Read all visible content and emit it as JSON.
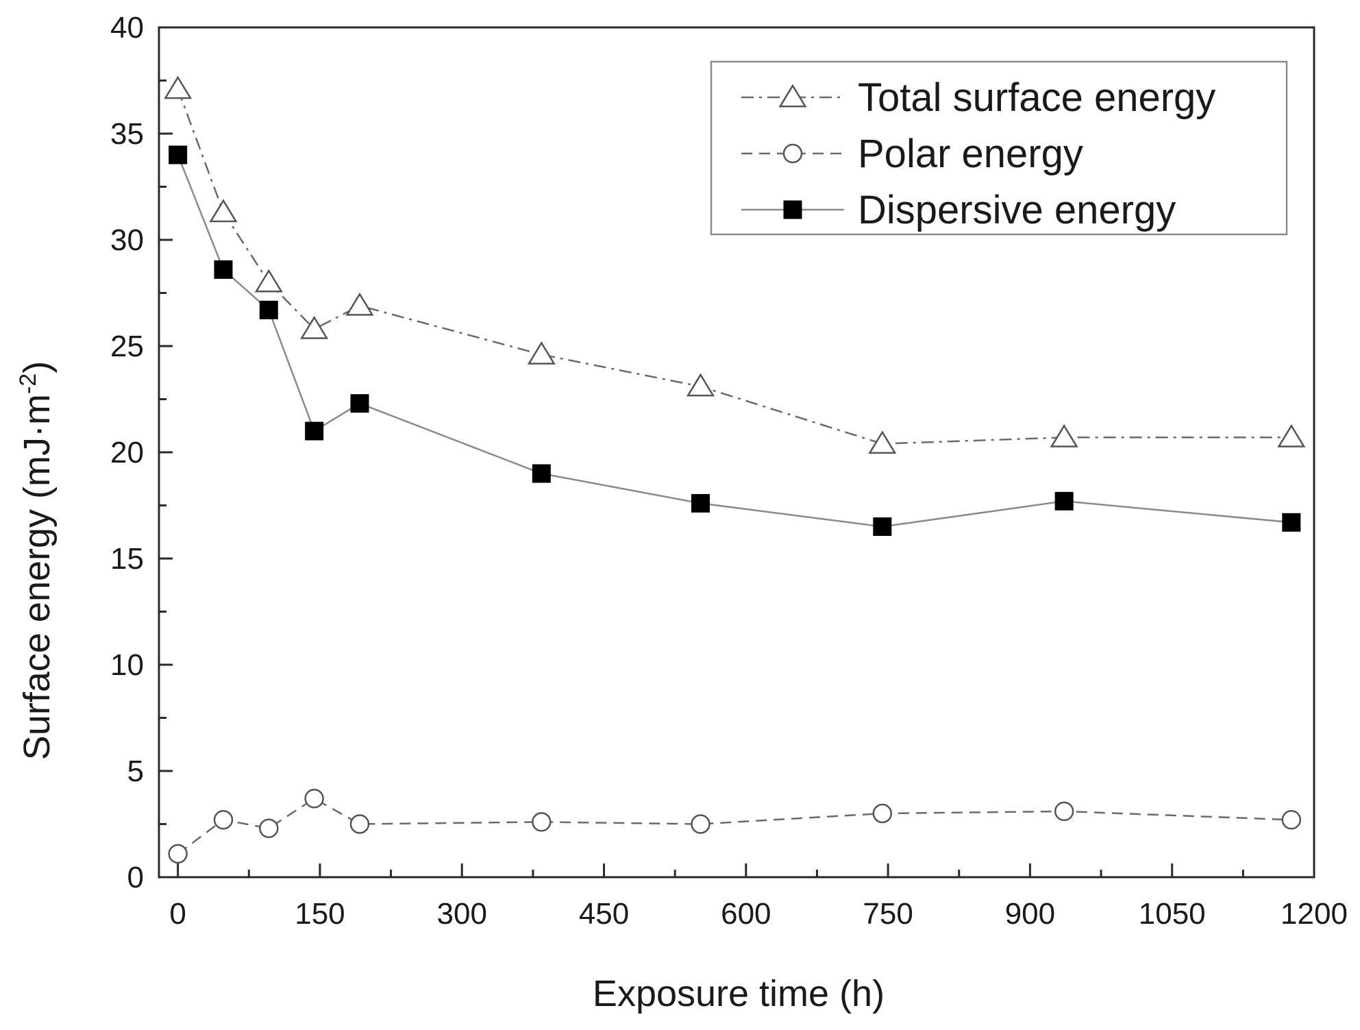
{
  "chart_data": {
    "type": "line",
    "title": "",
    "xlabel": "Exposure time (h)",
    "ylabel_main": "Surface energy (mJ·m",
    "ylabel_sup": "-2",
    "ylabel_close": ")",
    "xlim": [
      -20,
      1200
    ],
    "ylim": [
      0,
      40
    ],
    "xticks": [
      0,
      150,
      300,
      450,
      600,
      750,
      900,
      1050,
      1200
    ],
    "xtick_labels": [
      "0",
      "150",
      "300",
      "450",
      "600",
      "750",
      "900",
      "1050",
      "1200"
    ],
    "yticks": [
      0,
      5,
      10,
      15,
      20,
      25,
      30,
      35,
      40
    ],
    "ytick_labels": [
      "0",
      "5",
      "10",
      "15",
      "20",
      "25",
      "30",
      "35",
      "40"
    ],
    "legend_position": "top-right",
    "series": [
      {
        "name": "Total surface energy",
        "marker": "open-triangle",
        "line_style": "dash-dot",
        "x": [
          0,
          48,
          96,
          144,
          192,
          384,
          552,
          744,
          936,
          1176
        ],
        "values": [
          37.1,
          31.3,
          28.0,
          25.8,
          26.9,
          24.6,
          23.1,
          20.4,
          20.7,
          20.7
        ]
      },
      {
        "name": "Polar energy",
        "marker": "open-circle",
        "line_style": "dashed",
        "x": [
          0,
          48,
          96,
          144,
          192,
          384,
          552,
          744,
          936,
          1176
        ],
        "values": [
          1.1,
          2.7,
          2.3,
          3.7,
          2.5,
          2.6,
          2.5,
          3.0,
          3.1,
          2.7
        ]
      },
      {
        "name": "Dispersive energy",
        "marker": "filled-square",
        "line_style": "solid",
        "x": [
          0,
          48,
          96,
          144,
          192,
          384,
          552,
          744,
          936,
          1176
        ],
        "values": [
          34.0,
          28.6,
          26.7,
          21.0,
          22.3,
          19.0,
          17.6,
          16.5,
          17.7,
          16.7
        ]
      }
    ]
  }
}
